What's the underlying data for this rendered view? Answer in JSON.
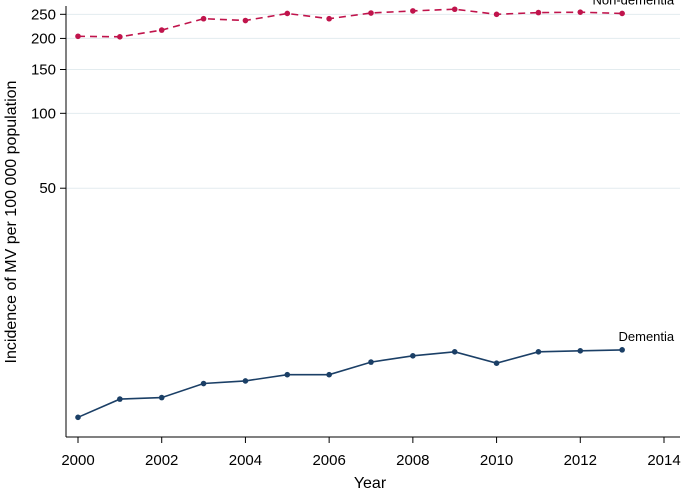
{
  "chart_data": {
    "type": "line",
    "title": "",
    "xlabel": "Year",
    "ylabel": "Incidence of MV per 100 000 population",
    "yscale": "log",
    "xlim": [
      2000,
      2014
    ],
    "ylim": [
      5,
      270
    ],
    "x_ticks": [
      2000,
      2002,
      2004,
      2006,
      2008,
      2010,
      2012,
      2014
    ],
    "x_tick_labels": [
      "2000",
      "2002",
      "2004",
      "2006",
      "2008",
      "2010",
      "2012",
      "2014"
    ],
    "y_ticks": [
      50,
      100,
      150,
      200,
      250
    ],
    "y_tick_labels": [
      "50",
      "100",
      "150",
      "200",
      "250"
    ],
    "grid": true,
    "colors": {
      "non_dementia": "#c0144c",
      "dementia": "#1b3f66"
    },
    "series": [
      {
        "name": "Non-dementia",
        "label": "Non-dementia",
        "style": "dashed",
        "x": [
          2000,
          2001,
          2002,
          2003,
          2004,
          2005,
          2006,
          2007,
          2008,
          2009,
          2010,
          2011,
          2012,
          2013
        ],
        "values": [
          204,
          203,
          216,
          240,
          236,
          252,
          240,
          253,
          258,
          262,
          250,
          254,
          255,
          252
        ]
      },
      {
        "name": "Dementia",
        "label": "Dementia",
        "style": "solid",
        "x": [
          2000,
          2001,
          2002,
          2003,
          2004,
          2005,
          2006,
          2007,
          2008,
          2009,
          2010,
          2011,
          2012,
          2013
        ],
        "values": [
          6.0,
          7.1,
          7.2,
          8.2,
          8.4,
          8.9,
          8.9,
          10.0,
          10.6,
          11.0,
          9.9,
          11.0,
          11.1,
          11.2
        ]
      }
    ]
  }
}
